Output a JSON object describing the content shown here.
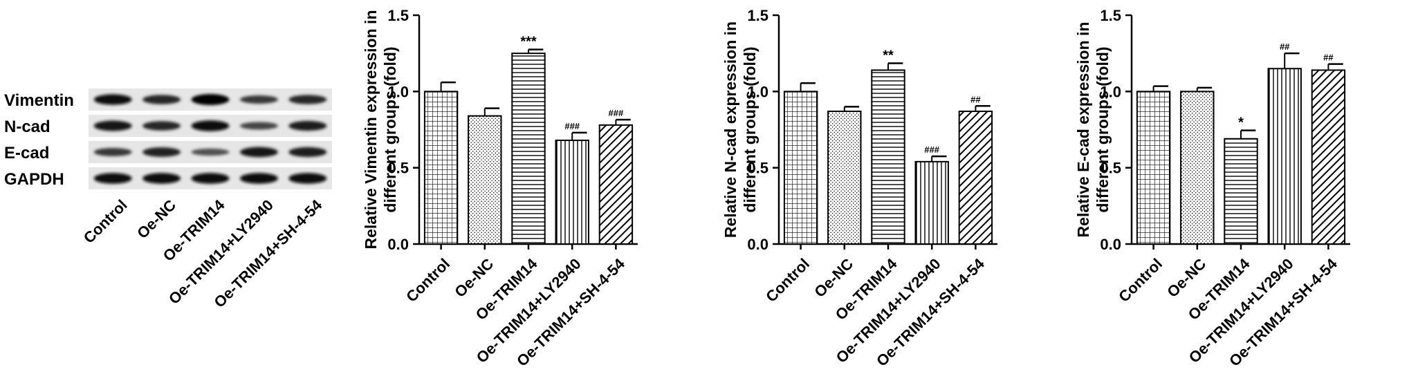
{
  "blot": {
    "rows": [
      "Vimentin",
      "N-cad",
      "E-cad",
      "GAPDH"
    ],
    "lanes": [
      "Control",
      "Oe-NC",
      "Oe-TRIM14",
      "Oe-TRIM14+LY2940",
      "Oe-TRIM14+SH-4-54"
    ],
    "intensity": [
      [
        0.92,
        0.72,
        1.0,
        0.55,
        0.7
      ],
      [
        0.88,
        0.72,
        0.95,
        0.45,
        0.8
      ],
      [
        0.55,
        0.75,
        0.35,
        0.85,
        0.8
      ],
      [
        0.95,
        0.95,
        0.95,
        0.95,
        0.95
      ]
    ]
  },
  "chart_data": [
    {
      "type": "bar",
      "ylabel": "Relative Vimentin expression in different groups (fold)",
      "ylim": [
        0,
        1.5
      ],
      "yticks": [
        "0.0",
        "0.5",
        "1.0",
        "1.5"
      ],
      "categories": [
        "Control",
        "Oe-NC",
        "Oe-TRIM14",
        "Oe-TRIM14+LY2940",
        "Oe-TRIM14+SH-4-54"
      ],
      "values": [
        1.0,
        0.84,
        1.25,
        0.68,
        0.78
      ],
      "errors": [
        0.06,
        0.05,
        0.025,
        0.05,
        0.035
      ],
      "annotations": [
        "",
        "",
        "***",
        "###",
        "###"
      ],
      "patterns": [
        "grid",
        "dots",
        "hlines",
        "vlines",
        "diag"
      ]
    },
    {
      "type": "bar",
      "ylabel": "Relative N-cad expression in different groups (fold)",
      "ylim": [
        0,
        1.5
      ],
      "yticks": [
        "0.0",
        "0.5",
        "1.0",
        "1.5"
      ],
      "categories": [
        "Control",
        "Oe-NC",
        "Oe-TRIM14",
        "Oe-TRIM14+LY2940",
        "Oe-TRIM14+SH-4-54"
      ],
      "values": [
        1.0,
        0.87,
        1.14,
        0.54,
        0.87
      ],
      "errors": [
        0.055,
        0.03,
        0.045,
        0.035,
        0.035
      ],
      "annotations": [
        "",
        "",
        "**",
        "###",
        "##"
      ],
      "patterns": [
        "grid",
        "dots",
        "hlines",
        "vlines",
        "diag"
      ]
    },
    {
      "type": "bar",
      "ylabel": "Relative E-cad expression in different groups (fold)",
      "ylim": [
        0,
        1.5
      ],
      "yticks": [
        "0.0",
        "0.5",
        "1.0",
        "1.5"
      ],
      "categories": [
        "Control",
        "Oe-NC",
        "Oe-TRIM14",
        "Oe-TRIM14+LY2940",
        "Oe-TRIM14+SH-4-54"
      ],
      "values": [
        1.0,
        1.0,
        0.69,
        1.15,
        1.14
      ],
      "errors": [
        0.035,
        0.025,
        0.055,
        0.1,
        0.04
      ],
      "annotations": [
        "",
        "",
        "*",
        "##",
        "##"
      ],
      "patterns": [
        "grid",
        "dots",
        "hlines",
        "vlines",
        "diag"
      ]
    }
  ]
}
